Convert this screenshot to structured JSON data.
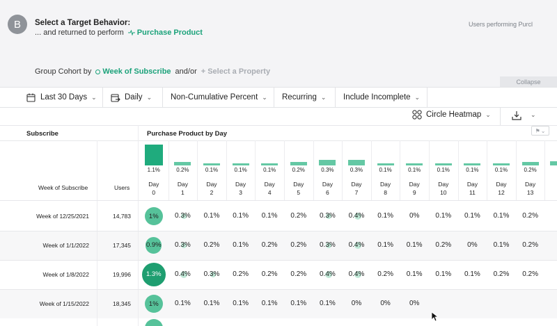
{
  "avatar_letter": "B",
  "target": {
    "title": "Select a Target Behavior:",
    "sub_prefix": "... and returned to perform",
    "event_name": "Purchase Product",
    "users_performing": "Users performing Purcl"
  },
  "cohort": {
    "label": "Group Cohort by",
    "group_name": "Week of Subscribe",
    "andor": "and/or",
    "select_property": "Select a Property",
    "collapse": "Collapse"
  },
  "toolbar": {
    "date_range": "Last 30 Days",
    "interval": "Daily",
    "metric": "Non-Cumulative Percent",
    "mode": "Recurring",
    "include": "Include Incomplete",
    "view": "Circle Heatmap"
  },
  "table": {
    "subscribe_header": "Subscribe",
    "purchase_header": "Purchase Product by Day",
    "week_col": "Week of Subscribe",
    "users_col": "Users",
    "day_word": "Day",
    "days": [
      "0",
      "1",
      "2",
      "3",
      "4",
      "5",
      "6",
      "7",
      "8",
      "9",
      "10",
      "11",
      "12",
      "13"
    ],
    "bar_values": [
      1.1,
      0.2,
      0.1,
      0.1,
      0.1,
      0.2,
      0.3,
      0.3,
      0.1,
      0.1,
      0.1,
      0.1,
      0.1,
      0.2
    ],
    "bar_labels": [
      "1.1%",
      "0.2%",
      "0.1%",
      "0.1%",
      "0.1%",
      "0.2%",
      "0.3%",
      "0.3%",
      "0.1%",
      "0.1%",
      "0.1%",
      "0.1%",
      "0.1%",
      "0.2%"
    ],
    "rows": [
      {
        "week": "Week of 12/25/2021",
        "users": "14,783",
        "values": [
          "1%",
          "0.3%",
          "0.1%",
          "0.1%",
          "0.1%",
          "0.2%",
          "0.3%",
          "0.4%",
          "0.1%",
          "0%",
          "0.1%",
          "0.1%",
          "0.1%",
          "0.2%"
        ],
        "dots": [
          1.0,
          0.3,
          0.1,
          0.1,
          0.1,
          0.2,
          0.3,
          0.4,
          0.1,
          0,
          0.1,
          0.1,
          0.1,
          0.2
        ]
      },
      {
        "week": "Week of 1/1/2022",
        "users": "17,345",
        "values": [
          "0.9%",
          "0.3%",
          "0.2%",
          "0.1%",
          "0.2%",
          "0.2%",
          "0.3%",
          "0.4%",
          "0.1%",
          "0.1%",
          "0.2%",
          "0%",
          "0.1%",
          "0.2%"
        ],
        "dots": [
          0.9,
          0.3,
          0.2,
          0.1,
          0.2,
          0.2,
          0.3,
          0.4,
          0.1,
          0.1,
          0.2,
          0,
          0.1,
          0.2
        ]
      },
      {
        "week": "Week of 1/8/2022",
        "users": "19,996",
        "values": [
          "1.3%",
          "0.4%",
          "0.3%",
          "0.2%",
          "0.2%",
          "0.2%",
          "0.4%",
          "0.4%",
          "0.2%",
          "0.1%",
          "0.1%",
          "0.1%",
          "0.2%",
          "0.2%"
        ],
        "dots": [
          1.3,
          0.4,
          0.3,
          0.2,
          0.2,
          0.2,
          0.4,
          0.4,
          0.2,
          0.1,
          0.1,
          0.1,
          0.2,
          0.2
        ]
      },
      {
        "week": "Week of 1/15/2022",
        "users": "18,345",
        "values": [
          "1%",
          "0.1%",
          "0.1%",
          "0.1%",
          "0.1%",
          "0.1%",
          "0.1%",
          "0%",
          "0%",
          "0%",
          "",
          "",
          "",
          ""
        ],
        "dots": [
          1.0,
          0.1,
          0.1,
          0.1,
          0.1,
          0.1,
          0.1,
          0,
          0,
          0,
          0,
          0,
          0,
          0
        ]
      }
    ]
  },
  "colors": {
    "accent": "#1ba27a",
    "bar": "#64c8a4",
    "bar_first": "#1fab7d",
    "circle": "#56c29a",
    "circle_dark": "#1e9e70"
  }
}
